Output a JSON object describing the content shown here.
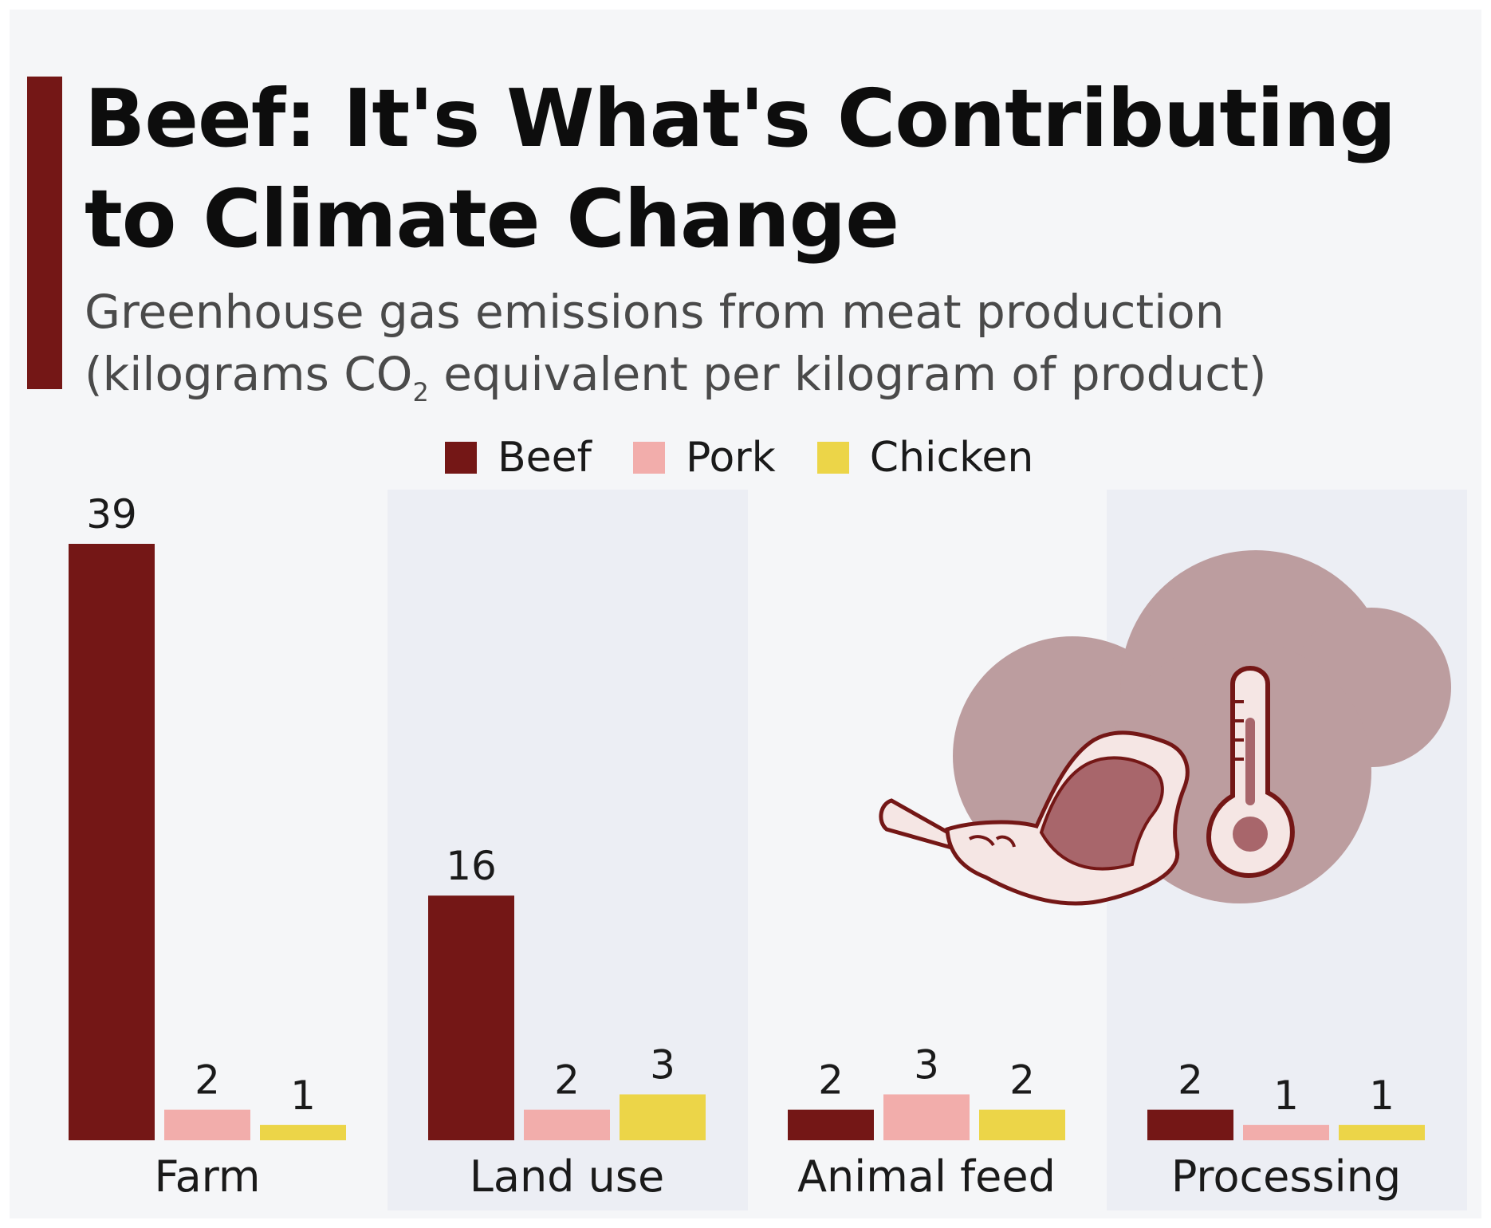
{
  "title": "Beef: It's What's Contributing to Climate Change",
  "subtitle": {
    "line1": "Greenhouse gas emissions from meat production",
    "line2_pre": "(kilograms CO",
    "line2_sub": "2",
    "line2_post": " equivalent per kilogram of product)"
  },
  "colors": {
    "accent": "#741716",
    "beef": "#741716",
    "pork": "#f2adab",
    "chicken": "#ecd548",
    "panel": "#eceef4",
    "background": "#f5f6f8",
    "cloud": "#bc9d9f",
    "meat": "#a8666b"
  },
  "illustration": {
    "icons": [
      "cloud-icon",
      "steak-icon",
      "thermometer-icon"
    ]
  },
  "chart_data": {
    "type": "bar",
    "categories": [
      "Farm",
      "Land use",
      "Animal feed",
      "Processing"
    ],
    "series": [
      {
        "name": "Beef",
        "values": [
          39,
          16,
          2,
          2
        ]
      },
      {
        "name": "Pork",
        "values": [
          2,
          2,
          3,
          1
        ]
      },
      {
        "name": "Chicken",
        "values": [
          1,
          3,
          2,
          1
        ]
      }
    ],
    "ylim": [
      0,
      39
    ],
    "xlabel": "",
    "ylabel": "",
    "legend": "top-center",
    "grid": false,
    "alternating_category_panels": true
  }
}
